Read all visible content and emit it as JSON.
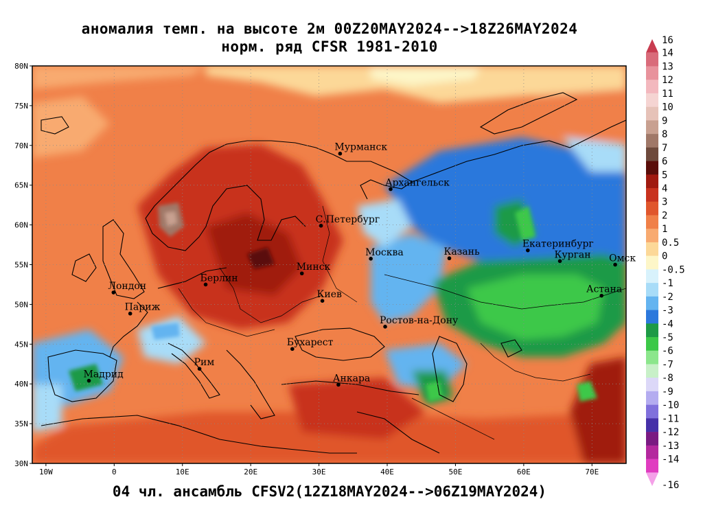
{
  "title_line1": "аномалия темп. на высоте 2м 00Z20MAY2024-->18Z26MAY2024",
  "title_line2": "норм. ряд CFSR 1981-2010",
  "footer": "04 чл. ансамбль CFSV2(12Z18MAY2024-->06Z19MAY2024)",
  "map": {
    "lon_range": [
      -12,
      75
    ],
    "lat_range": [
      30,
      80
    ],
    "lat_ticks": [
      {
        "value": 30,
        "label": "30N"
      },
      {
        "value": 35,
        "label": "35N"
      },
      {
        "value": 40,
        "label": "40N"
      },
      {
        "value": 45,
        "label": "45N"
      },
      {
        "value": 50,
        "label": "50N"
      },
      {
        "value": 55,
        "label": "55N"
      },
      {
        "value": 60,
        "label": "60N"
      },
      {
        "value": 65,
        "label": "65N"
      },
      {
        "value": 70,
        "label": "70N"
      },
      {
        "value": 75,
        "label": "75N"
      },
      {
        "value": 80,
        "label": "80N"
      }
    ],
    "lon_ticks": [
      {
        "value": -10,
        "label": "10W"
      },
      {
        "value": 0,
        "label": "0"
      },
      {
        "value": 10,
        "label": "10E"
      },
      {
        "value": 20,
        "label": "20E"
      },
      {
        "value": 30,
        "label": "30E"
      },
      {
        "value": 40,
        "label": "40E"
      },
      {
        "value": 50,
        "label": "50E"
      },
      {
        "value": 60,
        "label": "60E"
      },
      {
        "value": 70,
        "label": "70E"
      }
    ],
    "cities": [
      {
        "name": "Мурманск",
        "lon": 33.1,
        "lat": 68.97
      },
      {
        "name": "Архангельск",
        "lon": 40.5,
        "lat": 64.5
      },
      {
        "name": "С.Петербург",
        "lon": 30.3,
        "lat": 59.9
      },
      {
        "name": "Москва",
        "lon": 37.6,
        "lat": 55.75
      },
      {
        "name": "Казань",
        "lon": 49.1,
        "lat": 55.8
      },
      {
        "name": "Екатеринбург",
        "lon": 60.6,
        "lat": 56.8
      },
      {
        "name": "Курган",
        "lon": 65.3,
        "lat": 55.45
      },
      {
        "name": "Омск",
        "lon": 73.4,
        "lat": 55.0
      },
      {
        "name": "Астана",
        "lon": 71.4,
        "lat": 51.1
      },
      {
        "name": "Минск",
        "lon": 27.5,
        "lat": 53.9
      },
      {
        "name": "Берлин",
        "lon": 13.4,
        "lat": 52.5
      },
      {
        "name": "Лондон",
        "lon": -0.1,
        "lat": 51.5
      },
      {
        "name": "Париж",
        "lon": 2.35,
        "lat": 48.85
      },
      {
        "name": "Киев",
        "lon": 30.5,
        "lat": 50.45
      },
      {
        "name": "Ростов-на-Дону",
        "lon": 39.7,
        "lat": 47.2
      },
      {
        "name": "Бухарест",
        "lon": 26.1,
        "lat": 44.4
      },
      {
        "name": "Рим",
        "lon": 12.5,
        "lat": 41.9
      },
      {
        "name": "Мадрид",
        "lon": -3.7,
        "lat": 40.4
      },
      {
        "name": "Анкара",
        "lon": 32.85,
        "lat": 39.9
      }
    ],
    "anomaly_regions": [
      {
        "name": "arctic-north",
        "value": 2
      },
      {
        "name": "scandinavia",
        "value": 4
      },
      {
        "name": "central-europe",
        "value": 5
      },
      {
        "name": "mediterranean-south",
        "value": 3
      },
      {
        "name": "iberia-coast",
        "value": -2
      },
      {
        "name": "russia-north",
        "value": -2
      },
      {
        "name": "kazakhstan",
        "value": -4
      },
      {
        "name": "siberia-north",
        "value": -2
      },
      {
        "name": "chukchi-east",
        "value": 3
      },
      {
        "name": "norway-peak",
        "value": 9
      }
    ]
  },
  "colorbar": {
    "levels": [
      {
        "label": "16",
        "color": "#c83c50"
      },
      {
        "label": "14",
        "color": "#d96b7a"
      },
      {
        "label": "13",
        "color": "#e8929c"
      },
      {
        "label": "12",
        "color": "#f3b8be"
      },
      {
        "label": "11",
        "color": "#f5d4d2"
      },
      {
        "label": "10",
        "color": "#e6c2b8"
      },
      {
        "label": "9",
        "color": "#c8a090"
      },
      {
        "label": "8",
        "color": "#a07868"
      },
      {
        "label": "7",
        "color": "#6e4a3c"
      },
      {
        "label": "6",
        "color": "#5a0e0a"
      },
      {
        "label": "5",
        "color": "#a01a10"
      },
      {
        "label": "4",
        "color": "#c8321e"
      },
      {
        "label": "3",
        "color": "#e0562c"
      },
      {
        "label": "2",
        "color": "#f08048"
      },
      {
        "label": "1",
        "color": "#f8aa70"
      },
      {
        "label": "0.5",
        "color": "#fcd898"
      },
      {
        "label": "0",
        "color": "#fdf6c8"
      },
      {
        "label": "-0.5",
        "color": "#d8f2fc"
      },
      {
        "label": "-1",
        "color": "#a8dcf8"
      },
      {
        "label": "-2",
        "color": "#64b4f0"
      },
      {
        "label": "-3",
        "color": "#2c78dc"
      },
      {
        "label": "-4",
        "color": "#1e9a46"
      },
      {
        "label": "-5",
        "color": "#3cc848"
      },
      {
        "label": "-6",
        "color": "#8ce68c"
      },
      {
        "label": "-7",
        "color": "#c8f0c8"
      },
      {
        "label": "-8",
        "color": "#dcd8f8"
      },
      {
        "label": "-9",
        "color": "#b4acf0"
      },
      {
        "label": "-10",
        "color": "#8070dc"
      },
      {
        "label": "-11",
        "color": "#4630a8"
      },
      {
        "label": "-12",
        "color": "#7a1a82"
      },
      {
        "label": "-13",
        "color": "#b4289e"
      },
      {
        "label": "-14",
        "color": "#e03cc0"
      },
      {
        "label": "-16",
        "color": "#f4a0e8"
      }
    ]
  }
}
